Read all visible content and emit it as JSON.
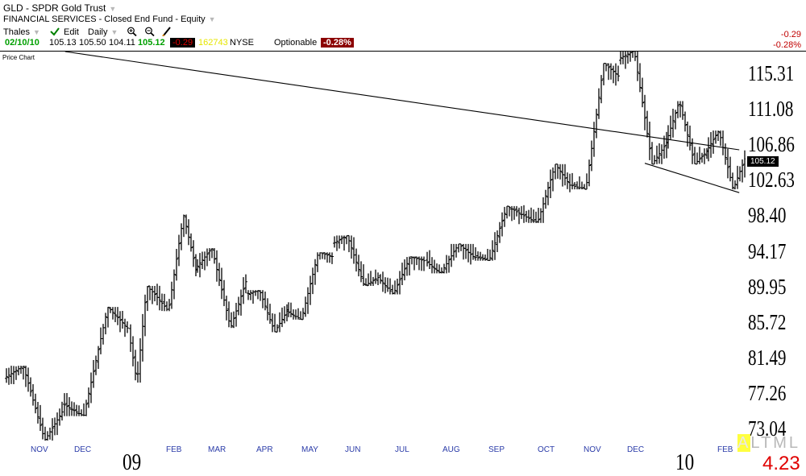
{
  "header": {
    "title": "GLD - SPDR Gold Trust",
    "subtitle": "FINANCIAL SERVICES - Closed End Fund - Equity",
    "user": "Thales",
    "edit_label": "Edit",
    "period": "Daily"
  },
  "quote": {
    "date": "02/10/10",
    "open": "105.13",
    "high": "105.50",
    "low": "104.11",
    "close": "105.12",
    "change": "-0.29",
    "volume": "162743",
    "exchange": "NYSE",
    "optionable": "Optionable",
    "pct_change": "-0.28%"
  },
  "right_change": {
    "change": "-0.29",
    "pct": "-0.28%"
  },
  "chart_label": "Price Chart",
  "last_price_box": "105.12",
  "timeframes": {
    "selected": "A",
    "others": "LTML"
  },
  "bottom_value": "4.23",
  "colors": {
    "up_quote": "#00a000",
    "down_box": "#c00000",
    "volume": "#e6e600",
    "month_labels": "#2a3ba8",
    "bottom_value": "#e00000"
  },
  "chart_data": {
    "type": "ohlc",
    "ticks": [
      "115.31",
      "111.08",
      "106.86",
      "102.63",
      "98.40",
      "94.17",
      "89.95",
      "85.72",
      "81.49",
      "77.26",
      "73.04"
    ],
    "ylim": [
      71.5,
      117.9
    ],
    "months": [
      "NOV",
      "DEC",
      "09",
      "FEB",
      "MAR",
      "APR",
      "MAY",
      "JUN",
      "JUL",
      "AUG",
      "SEP",
      "OCT",
      "NOV",
      "DEC",
      "10",
      "FEB"
    ],
    "trendlines": [
      {
        "from": [
          "2008-12-02",
          117.9
        ],
        "to": [
          "2010-02-26",
          106.2
        ]
      },
      {
        "from": [
          "2009-12-17",
          104.6
        ],
        "to": [
          "2010-02-26",
          101.1
        ]
      }
    ],
    "monthly": [
      {
        "month": "Nov 2008",
        "open": 79.0,
        "high": 80.5,
        "low": 71.6,
        "close": 75.0
      },
      {
        "month": "Dec 2008",
        "open": 76.0,
        "high": 87.5,
        "low": 74.5,
        "close": 85.0
      },
      {
        "month": "Jan 2009",
        "open": 85.0,
        "high": 90.0,
        "low": 78.5,
        "close": 89.0
      },
      {
        "month": "Feb 2009",
        "open": 89.0,
        "high": 98.5,
        "low": 87.0,
        "close": 92.0
      },
      {
        "month": "Mar 2009",
        "open": 92.0,
        "high": 94.5,
        "low": 85.0,
        "close": 90.5
      },
      {
        "month": "Apr 2009",
        "open": 89.0,
        "high": 89.5,
        "low": 84.5,
        "close": 87.0
      },
      {
        "month": "May 2009",
        "open": 87.0,
        "high": 94.0,
        "low": 86.0,
        "close": 93.5
      },
      {
        "month": "Jun 2009",
        "open": 95.0,
        "high": 96.0,
        "low": 90.0,
        "close": 91.0
      },
      {
        "month": "Jul 2009",
        "open": 91.0,
        "high": 93.5,
        "low": 89.0,
        "close": 93.0
      },
      {
        "month": "Aug 2009",
        "open": 93.0,
        "high": 95.0,
        "low": 91.5,
        "close": 93.5
      },
      {
        "month": "Sep 2009",
        "open": 93.5,
        "high": 99.5,
        "low": 93.0,
        "close": 98.5
      },
      {
        "month": "Oct 2009",
        "open": 98.5,
        "high": 104.5,
        "low": 97.5,
        "close": 102.0
      },
      {
        "month": "Nov 2009",
        "open": 102.0,
        "high": 116.5,
        "low": 101.5,
        "close": 115.0
      },
      {
        "month": "Dec 2009",
        "open": 117.0,
        "high": 118.0,
        "low": 104.5,
        "close": 107.0
      },
      {
        "month": "Jan 2010",
        "open": 107.0,
        "high": 112.0,
        "low": 104.5,
        "close": 106.0
      },
      {
        "month": "Feb 2010",
        "open": 106.0,
        "high": 108.5,
        "low": 101.5,
        "close": 105.12
      }
    ]
  }
}
